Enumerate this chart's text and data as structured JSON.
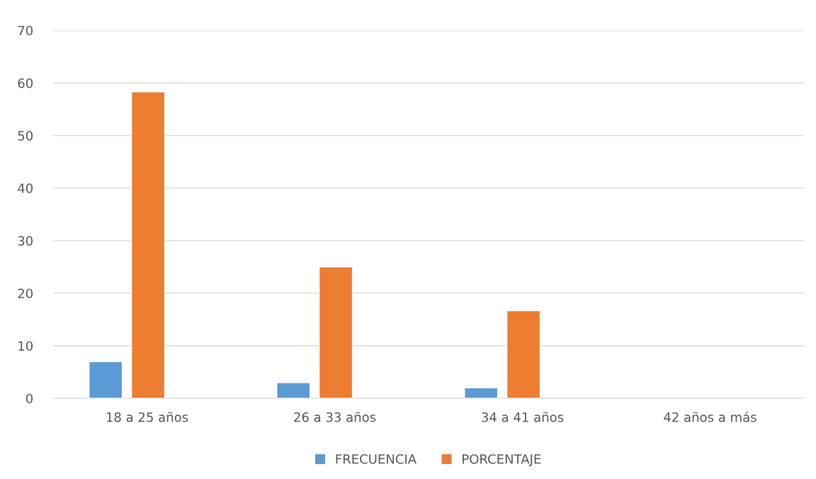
{
  "chart_data": {
    "type": "bar",
    "categories": [
      "18 a 25 años",
      "26 a 33 años",
      "34 a 41 años",
      "42 años a más"
    ],
    "series": [
      {
        "name": "FRECUENCIA",
        "color": "#5b9bd5",
        "values": [
          7,
          3,
          2,
          null
        ]
      },
      {
        "name": "PORCENTAJE",
        "color": "#ed7d31",
        "values": [
          58.3,
          25,
          16.7,
          null
        ]
      }
    ],
    "ylim": [
      0,
      70
    ],
    "yticks": [
      0,
      10,
      20,
      30,
      40,
      50,
      60,
      70
    ],
    "grid": "y",
    "legend": "bottom"
  }
}
